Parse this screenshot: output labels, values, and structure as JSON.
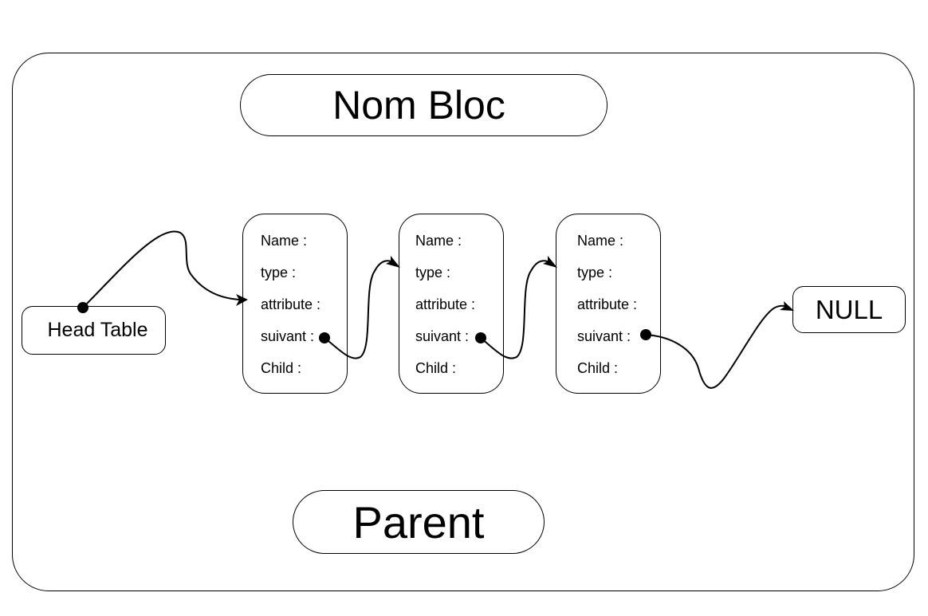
{
  "diagram": {
    "title": "Nom Bloc",
    "parent": "Parent",
    "head_table": "Head Table",
    "null_label": "NULL",
    "nodes": [
      {
        "fields": [
          "Name :",
          "type :",
          "attribute :",
          "suivant :",
          "Child :"
        ]
      },
      {
        "fields": [
          "Name :",
          "type :",
          "attribute :",
          "suivant :",
          "Child :"
        ]
      },
      {
        "fields": [
          "Name :",
          "type :",
          "attribute :",
          "suivant :",
          "Child :"
        ]
      }
    ],
    "stroke_color": "#000000"
  }
}
